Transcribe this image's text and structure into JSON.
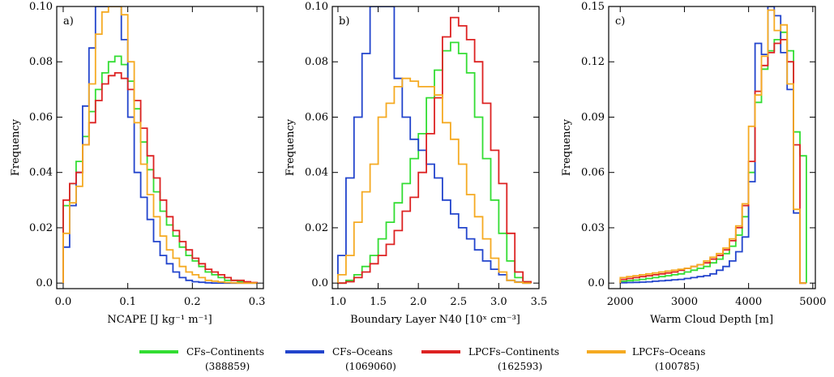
{
  "colors": {
    "cf_continents": "#33dd33",
    "cf_oceans": "#2244cc",
    "lpcf_continents": "#dd2222",
    "lpcf_oceans": "#f5aa22"
  },
  "legend": [
    {
      "name": "CFs–Continents",
      "count": "(388859)",
      "color": "#33dd33"
    },
    {
      "name": "CFs–Oceans",
      "count": "(1069060)",
      "color": "#2244cc"
    },
    {
      "name": "LPCFs–Continents",
      "count": "(162593)",
      "color": "#dd2222"
    },
    {
      "name": "LPCFs–Oceans",
      "count": "(100785)",
      "color": "#f5aa22"
    }
  ],
  "chart_data": [
    {
      "type": "line",
      "step": true,
      "panel_label": "a)",
      "xlabel": "NCAPE [J kg⁻¹ m⁻¹]",
      "ylabel": "Frequency",
      "xlim": [
        -0.01,
        0.31
      ],
      "ylim": [
        -0.002,
        0.1
      ],
      "xticks": [
        0.0,
        0.1,
        0.2,
        0.3
      ],
      "xtick_labels": [
        "0.0",
        "0.1",
        "0.2",
        "0.3"
      ],
      "yticks": [
        0.0,
        0.02,
        0.04,
        0.06,
        0.08,
        0.1
      ],
      "ytick_labels": [
        "0.0",
        "0.02",
        "0.04",
        "0.06",
        "0.08",
        "0.10"
      ],
      "bin_start": 0.0,
      "bin_width": 0.01,
      "series": [
        {
          "name": "CFs–Continents",
          "values": [
            0.028,
            0.036,
            0.044,
            0.053,
            0.062,
            0.07,
            0.076,
            0.08,
            0.082,
            0.079,
            0.073,
            0.063,
            0.051,
            0.041,
            0.033,
            0.026,
            0.021,
            0.017,
            0.013,
            0.01,
            0.008,
            0.006,
            0.004,
            0.003,
            0.002,
            0.001,
            0.001,
            0.0005,
            0.0003,
            0.0001
          ]
        },
        {
          "name": "CFs–Oceans",
          "values": [
            0.013,
            0.028,
            0.04,
            0.064,
            0.085,
            0.103,
            0.105,
            0.105,
            0.1,
            0.088,
            0.06,
            0.04,
            0.031,
            0.023,
            0.015,
            0.01,
            0.007,
            0.004,
            0.002,
            0.001,
            0.0005,
            0.0003,
            0.0001,
            0,
            0,
            0,
            0,
            0,
            0,
            0
          ]
        },
        {
          "name": "LPCFs–Continents",
          "values": [
            0.03,
            0.036,
            0.04,
            0.05,
            0.058,
            0.066,
            0.072,
            0.075,
            0.076,
            0.074,
            0.07,
            0.066,
            0.056,
            0.046,
            0.038,
            0.03,
            0.024,
            0.019,
            0.015,
            0.012,
            0.009,
            0.007,
            0.005,
            0.004,
            0.003,
            0.002,
            0.001,
            0.001,
            0.0005,
            0.0002
          ]
        },
        {
          "name": "LPCFs–Oceans",
          "values": [
            0.018,
            0.029,
            0.035,
            0.05,
            0.072,
            0.09,
            0.098,
            0.103,
            0.104,
            0.097,
            0.08,
            0.058,
            0.043,
            0.032,
            0.024,
            0.017,
            0.012,
            0.009,
            0.006,
            0.004,
            0.003,
            0.002,
            0.001,
            0.0007,
            0.0004,
            0.0002,
            0.0001,
            0,
            0,
            0
          ]
        }
      ]
    },
    {
      "type": "line",
      "step": true,
      "panel_label": "b)",
      "xlabel": "Boundary Layer N40 [10ˣ cm⁻³]",
      "ylabel": "Frequency",
      "xlim": [
        0.93,
        3.5
      ],
      "ylim": [
        -0.002,
        0.1
      ],
      "xticks": [
        1.0,
        1.5,
        2.0,
        2.5,
        3.0,
        3.5
      ],
      "xtick_labels": [
        "1.0",
        "1.5",
        "2.0",
        "2.5",
        "3.0",
        "3.5"
      ],
      "yticks": [
        0.0,
        0.02,
        0.04,
        0.06,
        0.08,
        0.1
      ],
      "ytick_labels": [
        "0.0",
        "0.02",
        "0.04",
        "0.06",
        "0.08",
        "0.10"
      ],
      "bin_start": 1.0,
      "bin_width": 0.1,
      "series": [
        {
          "name": "CFs–Continents",
          "values": [
            0.0,
            0.001,
            0.003,
            0.006,
            0.01,
            0.016,
            0.022,
            0.029,
            0.036,
            0.045,
            0.054,
            0.067,
            0.077,
            0.084,
            0.087,
            0.083,
            0.076,
            0.06,
            0.045,
            0.03,
            0.018,
            0.008,
            0.002,
            0.0005
          ]
        },
        {
          "name": "CFs–Oceans",
          "values": [
            0.01,
            0.038,
            0.06,
            0.083,
            0.1,
            0.1,
            0.1,
            0.074,
            0.06,
            0.052,
            0.048,
            0.043,
            0.038,
            0.03,
            0.025,
            0.02,
            0.016,
            0.012,
            0.008,
            0.005,
            0.003,
            0.001,
            0.0004,
            0
          ]
        },
        {
          "name": "LPCFs–Continents",
          "values": [
            0.0,
            0.0005,
            0.002,
            0.004,
            0.007,
            0.01,
            0.014,
            0.019,
            0.026,
            0.031,
            0.04,
            0.054,
            0.067,
            0.089,
            0.096,
            0.093,
            0.088,
            0.08,
            0.065,
            0.048,
            0.036,
            0.018,
            0.004,
            0.0005
          ]
        },
        {
          "name": "LPCFs–Oceans",
          "values": [
            0.003,
            0.01,
            0.022,
            0.033,
            0.043,
            0.06,
            0.065,
            0.071,
            0.074,
            0.073,
            0.071,
            0.071,
            0.068,
            0.058,
            0.052,
            0.043,
            0.032,
            0.024,
            0.016,
            0.009,
            0.004,
            0.001,
            0.0003,
            0
          ]
        }
      ]
    },
    {
      "type": "line",
      "step": true,
      "panel_label": "c)",
      "xlabel": "Warm Cloud Depth [m]",
      "ylabel": "Frequency",
      "xlim": [
        1820,
        5040
      ],
      "ylim": [
        -0.003,
        0.15
      ],
      "xticks": [
        2000,
        3000,
        4000,
        5000
      ],
      "xtick_labels": [
        "2000",
        "3000",
        "4000",
        "5000"
      ],
      "yticks": [
        0.0,
        0.03,
        0.06,
        0.09,
        0.12,
        0.15
      ],
      "ytick_labels": [
        "0.0",
        "0.03",
        "0.06",
        "0.09",
        "0.12",
        "0.15"
      ],
      "bin_start": 2000,
      "bin_width": 100,
      "series": [
        {
          "name": "CFs–Continents",
          "values": [
            0.001,
            0.0013,
            0.0016,
            0.002,
            0.0025,
            0.003,
            0.0035,
            0.004,
            0.0045,
            0.005,
            0.006,
            0.007,
            0.008,
            0.009,
            0.011,
            0.013,
            0.016,
            0.02,
            0.026,
            0.036,
            0.06,
            0.098,
            0.116,
            0.126,
            0.132,
            0.136,
            0.126,
            0.082,
            0.069
          ]
        },
        {
          "name": "CFs–Oceans",
          "values": [
            0.0002,
            0.0003,
            0.0004,
            0.0005,
            0.0007,
            0.001,
            0.0012,
            0.0015,
            0.0018,
            0.002,
            0.0025,
            0.003,
            0.0035,
            0.004,
            0.005,
            0.007,
            0.009,
            0.012,
            0.017,
            0.025,
            0.055,
            0.13,
            0.124,
            0.152,
            0.145,
            0.125,
            0.105,
            0.038,
            0
          ]
        },
        {
          "name": "LPCFs–Continents",
          "values": [
            0.002,
            0.0025,
            0.003,
            0.0035,
            0.004,
            0.0045,
            0.005,
            0.0055,
            0.006,
            0.007,
            0.008,
            0.009,
            0.01,
            0.011,
            0.013,
            0.015,
            0.018,
            0.023,
            0.03,
            0.042,
            0.066,
            0.104,
            0.118,
            0.125,
            0.13,
            0.132,
            0.12,
            0.075,
            0
          ]
        },
        {
          "name": "LPCFs–Oceans",
          "values": [
            0.003,
            0.0035,
            0.004,
            0.0045,
            0.005,
            0.0055,
            0.006,
            0.0065,
            0.007,
            0.0075,
            0.008,
            0.009,
            0.01,
            0.012,
            0.014,
            0.016,
            0.019,
            0.024,
            0.031,
            0.043,
            0.085,
            0.102,
            0.123,
            0.148,
            0.137,
            0.14,
            0.108,
            0.04,
            0.0
          ]
        }
      ]
    }
  ]
}
